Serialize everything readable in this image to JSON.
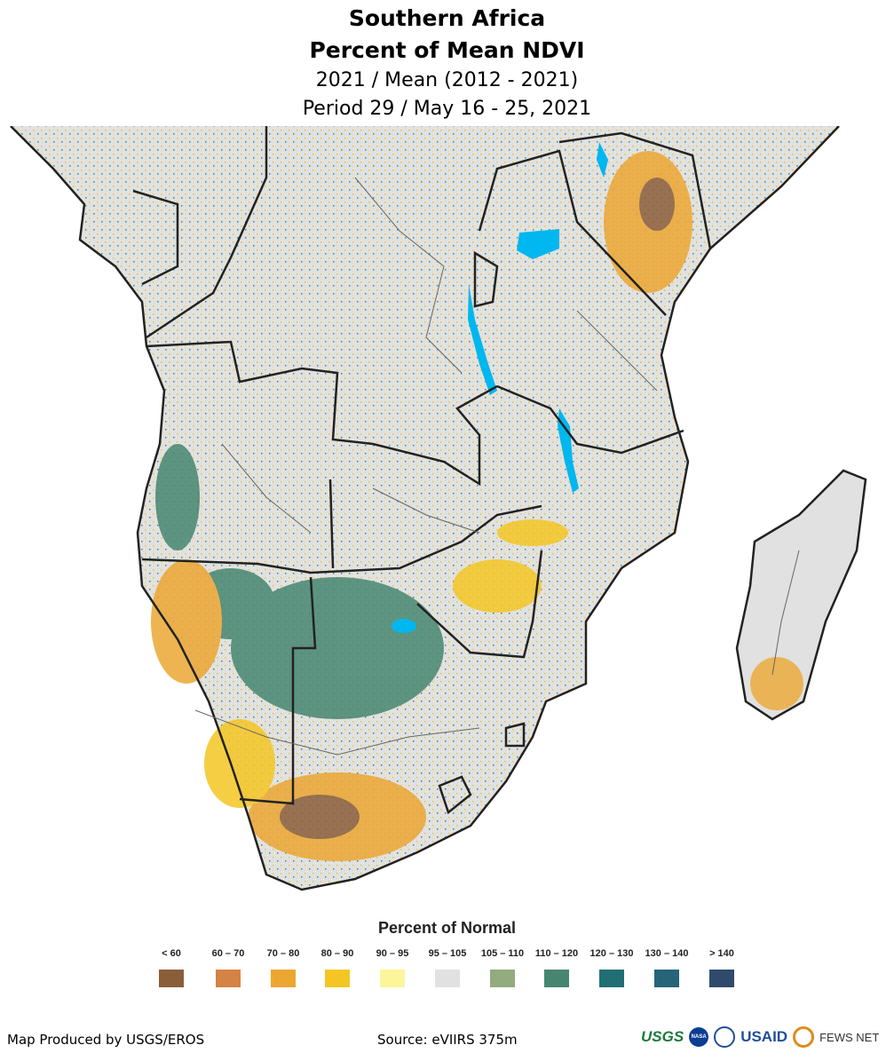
{
  "title": {
    "line1": "Southern Africa",
    "line2": "Percent of Mean NDVI",
    "line3": "2021 / Mean (2012 - 2021)",
    "line4": "Period 29 / May 16 - 25, 2021"
  },
  "legend": {
    "title": "Percent of Normal",
    "items": [
      {
        "label": "< 60",
        "color": "#8b5e3a"
      },
      {
        "label": "60 – 70",
        "color": "#d48245"
      },
      {
        "label": "70 – 80",
        "color": "#eca733"
      },
      {
        "label": "80 – 90",
        "color": "#f5c623"
      },
      {
        "label": "90 – 95",
        "color": "#fcf59a"
      },
      {
        "label": "95 – 105",
        "color": "#e1e1e1"
      },
      {
        "label": "105 – 110",
        "color": "#92ab7f"
      },
      {
        "label": "110 – 120",
        "color": "#468671"
      },
      {
        "label": "120 – 130",
        "color": "#216f74"
      },
      {
        "label": "130 – 140",
        "color": "#256479"
      },
      {
        "label": "> 140",
        "color": "#2f4a6b"
      }
    ]
  },
  "footer": {
    "producer": "Map Produced by USGS/EROS",
    "source": "Source: eVIIRS 375m"
  },
  "logos": {
    "usgs": "USGS",
    "nasa": "NASA",
    "usaid": "USAID",
    "fews": "FEWS NET"
  }
}
